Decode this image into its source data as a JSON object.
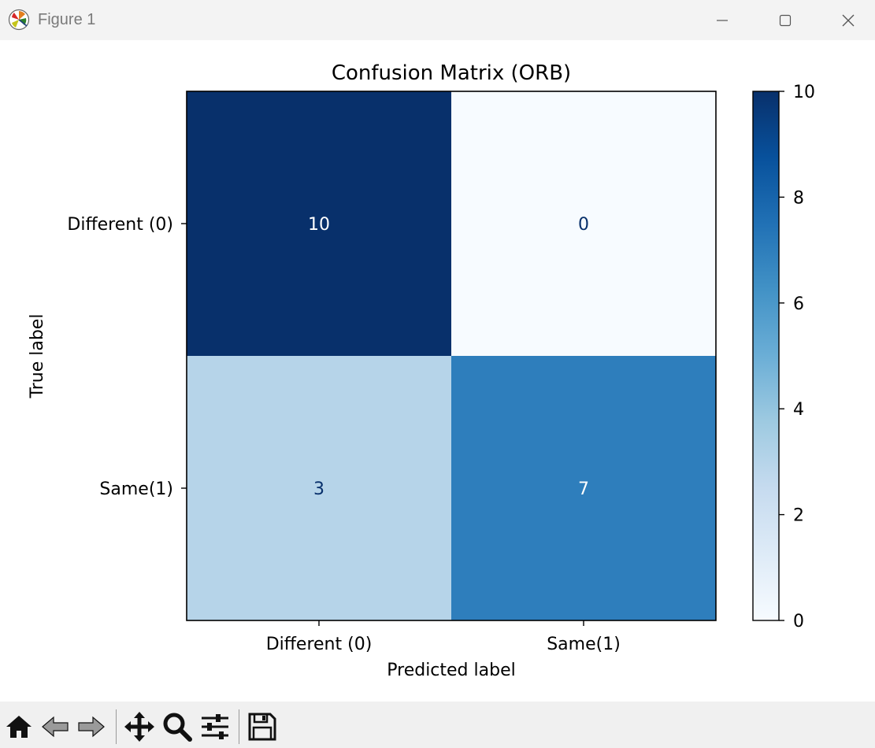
{
  "window": {
    "title": "Figure 1",
    "minimize_icon": "minimize-icon",
    "maximize_icon": "maximize-icon",
    "close_icon": "close-icon"
  },
  "toolbar": {
    "tools": [
      {
        "name": "home",
        "icon": "home-icon"
      },
      {
        "name": "back",
        "icon": "back-arrow-icon"
      },
      {
        "name": "forward",
        "icon": "forward-arrow-icon"
      },
      {
        "name": "pan",
        "icon": "move-icon"
      },
      {
        "name": "zoom",
        "icon": "magnifier-icon"
      },
      {
        "name": "configure",
        "icon": "sliders-icon"
      },
      {
        "name": "save",
        "icon": "floppy-disk-icon"
      }
    ],
    "message": ""
  },
  "chart_data": {
    "type": "heatmap",
    "title": "Confusion Matrix (ORB)",
    "xlabel": "Predicted label",
    "ylabel": "True label",
    "x_categories": [
      "Different (0)",
      "Same(1)"
    ],
    "y_categories": [
      "Different (0)",
      "Same(1)"
    ],
    "values": [
      [
        10,
        0
      ],
      [
        3,
        7
      ]
    ],
    "colormap": "Blues",
    "colorbar": {
      "min": 0,
      "max": 10,
      "ticks": [
        0,
        2,
        4,
        6,
        8,
        10
      ]
    },
    "text_colors": {
      "dark": "#08306b",
      "light": "#ffffff"
    },
    "grid": false
  }
}
